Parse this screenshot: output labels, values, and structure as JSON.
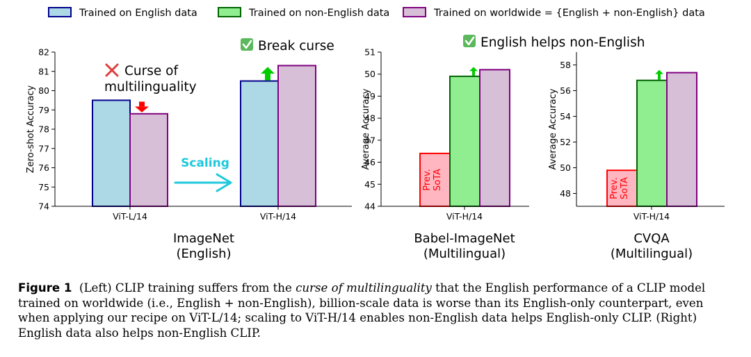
{
  "legend": [
    {
      "label": "Trained on English data",
      "fill": "#add8e6",
      "stroke": "#00008b"
    },
    {
      "label": "Trained on non-English data",
      "fill": "#90ee90",
      "stroke": "#006400"
    },
    {
      "label": "Trained on worldwide = {English + non-English} data",
      "fill": "#d8bfd8",
      "stroke": "#800080"
    }
  ],
  "colors": {
    "prev_fill": "#ffb6c1",
    "prev_stroke": "#ff0000",
    "arrow_down": "#ff0000",
    "arrow_up": "#00cc00",
    "scaling": "#1ec8dc",
    "check_bg": "#5cb85c",
    "cross": "#e03c3c"
  },
  "chart_data": [
    {
      "type": "bar",
      "title": "ImageNet\n(English)",
      "title_lines": [
        "ImageNet",
        "(English)"
      ],
      "ylabel": "Zero-shot Accuracy",
      "ylim": [
        74,
        82
      ],
      "yticks": [
        74,
        75,
        76,
        77,
        78,
        79,
        80,
        81,
        82
      ],
      "categories": [
        "ViT-L/14",
        "ViT-H/14"
      ],
      "series": [
        {
          "name": "Trained on English data",
          "values": [
            79.5,
            80.5
          ]
        },
        {
          "name": "Trained on worldwide = {English + non-English} data",
          "values": [
            78.8,
            81.3
          ]
        }
      ],
      "annotations": {
        "curse": "Curse of\nmultilinguality",
        "curse_lines": [
          "Curse of",
          "multilinguality"
        ],
        "break": "Break curse",
        "scaling": "Scaling"
      }
    },
    {
      "type": "bar",
      "title": "Babel-ImageNet\n(Multilingual)",
      "title_lines": [
        "Babel-ImageNet",
        "(Multilingual)"
      ],
      "ylabel": "Average Accuracy",
      "ylim": [
        44,
        51
      ],
      "yticks": [
        44,
        45,
        46,
        47,
        48,
        49,
        50,
        51
      ],
      "categories": [
        "ViT-H/14"
      ],
      "series": [
        {
          "name": "Prev. SoTA",
          "values": [
            46.4
          ]
        },
        {
          "name": "Trained on non-English data",
          "values": [
            49.9
          ]
        },
        {
          "name": "Trained on worldwide = {English + non-English} data",
          "values": [
            50.2
          ]
        }
      ],
      "prev_label": "Prev.\nSoTA",
      "prev_lines": [
        "Prev.",
        "SoTA"
      ]
    },
    {
      "type": "bar",
      "title": "CVQA\n(Multilingual)",
      "title_lines": [
        "CVQA",
        "(Multilingual)"
      ],
      "ylabel": "Average Accuracy",
      "ylim": [
        47,
        59
      ],
      "yticks": [
        48,
        50,
        52,
        54,
        56,
        58
      ],
      "categories": [
        "ViT-H/14"
      ],
      "series": [
        {
          "name": "Prev. SoTA",
          "values": [
            49.8
          ]
        },
        {
          "name": "Trained on non-English data",
          "values": [
            56.8
          ]
        },
        {
          "name": "Trained on worldwide = {English + non-English} data",
          "values": [
            57.4
          ]
        }
      ],
      "prev_label": "Prev.\nSoTA",
      "prev_lines": [
        "Prev.",
        "SoTA"
      ]
    }
  ],
  "right_annotation": "English helps non-English",
  "caption": {
    "label": "Figure 1",
    "part1": "(Left) CLIP training suffers from the ",
    "italic": "curse of multilinguality",
    "part2": " that the English performance of a CLIP model trained on worldwide (i.e., English + non-English), billion-scale data is worse than its English-only counterpart, even when applying our recipe on ViT-L/14; scaling to ViT-H/14 enables non-English data helps English-only CLIP. (Right) English data also helps non-English CLIP."
  }
}
